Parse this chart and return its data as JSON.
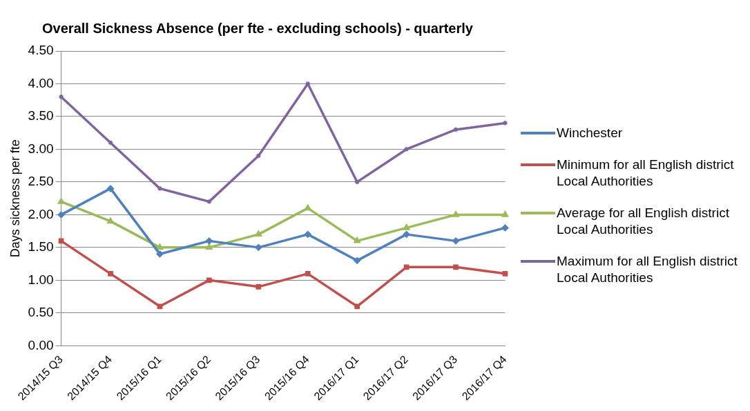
{
  "chart_data": {
    "type": "line",
    "title": "Overall Sickness Absence (per fte - excluding schools) - quarterly",
    "ylabel": "Days sickness per fte",
    "categories": [
      "2014/15 Q3",
      "2014/15 Q4",
      "2015/16 Q1",
      "2015/16 Q2",
      "2015/16 Q3",
      "2015/16 Q4",
      "2016/17 Q1",
      "2016/17 Q2",
      "2016/17 Q3",
      "2016/17 Q4"
    ],
    "series": [
      {
        "name": "Winchester",
        "color": "#4f81bd",
        "marker": "diamond",
        "values": [
          2.0,
          2.4,
          1.4,
          1.6,
          1.5,
          1.7,
          1.3,
          1.7,
          1.6,
          1.8
        ]
      },
      {
        "name": "Minimum for all English district Local Authorities",
        "color": "#c0504d",
        "marker": "square",
        "values": [
          1.6,
          1.1,
          0.6,
          1.0,
          0.9,
          1.1,
          0.6,
          1.2,
          1.2,
          1.1
        ]
      },
      {
        "name": "Average for all English district Local Authorities",
        "color": "#9bbb59",
        "marker": "triangle",
        "values": [
          2.2,
          1.9,
          1.5,
          1.5,
          1.7,
          2.1,
          1.6,
          1.8,
          2.0,
          2.0
        ]
      },
      {
        "name": "Maximum for all English district Local Authorities",
        "color": "#8064a2",
        "marker": "cross",
        "values": [
          3.8,
          3.1,
          2.4,
          2.2,
          2.9,
          4.0,
          2.5,
          3.0,
          3.3,
          3.4
        ]
      }
    ],
    "ylim": [
      0,
      4.5
    ],
    "yticks": [
      {
        "value": 0,
        "label": "0.00"
      },
      {
        "value": 0.5,
        "label": "0.50"
      },
      {
        "value": 1,
        "label": "1.00"
      },
      {
        "value": 1.5,
        "label": "1.50"
      },
      {
        "value": 2,
        "label": "2.00"
      },
      {
        "value": 2.5,
        "label": "2.50"
      },
      {
        "value": 3,
        "label": "3.00"
      },
      {
        "value": 3.5,
        "label": "3.50"
      },
      {
        "value": 4,
        "label": "4.00"
      },
      {
        "value": 4.5,
        "label": "4.50"
      }
    ],
    "grid": "y",
    "legend": "right",
    "line_style": "solid"
  }
}
